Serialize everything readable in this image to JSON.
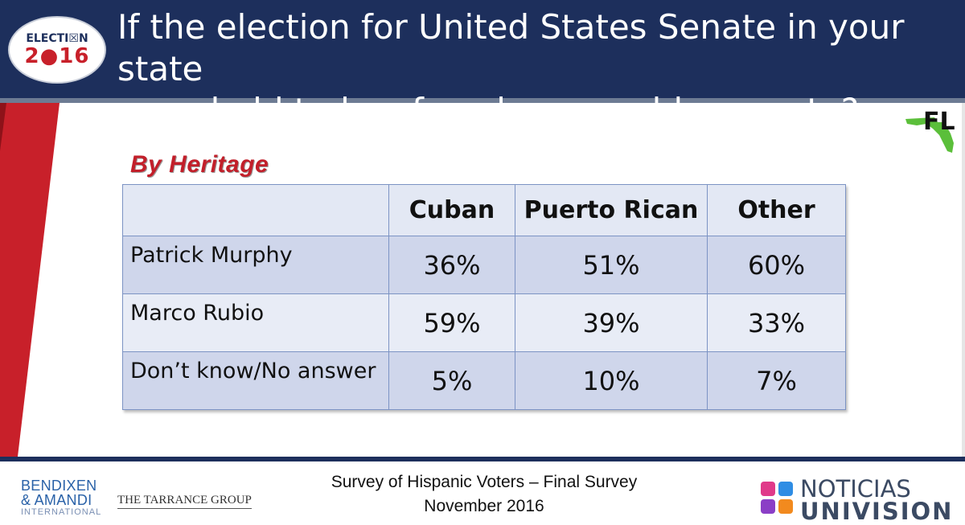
{
  "header": {
    "logo_line1": "ELECTI☒N",
    "logo_line2": "2●16",
    "title_line1": "If the election for United States Senate in your state",
    "title_line2": "were held today, for whom would you vote?"
  },
  "state_label": "FL",
  "section_heading": "By Heritage",
  "table": {
    "columns": [
      "",
      "Cuban",
      "Puerto Rican",
      "Other"
    ],
    "rows": [
      {
        "label": "Patrick Murphy",
        "values": [
          "36%",
          "51%",
          "60%"
        ]
      },
      {
        "label": "Marco Rubio",
        "values": [
          "59%",
          "39%",
          "33%"
        ]
      },
      {
        "label": "Don’t know/No answer",
        "values": [
          "5%",
          "10%",
          "7%"
        ]
      }
    ]
  },
  "footer": {
    "bendixen_line1": "BENDIXEN",
    "bendixen_line2": "& AMANDI",
    "bendixen_line3": "INTERNATIONAL",
    "tarrance": "THE TARRANCE GROUP",
    "survey_line1": "Survey of Hispanic Voters – Final Survey",
    "survey_line2": "November 2016",
    "noticias_line1": "NOTICIAS",
    "noticias_line2": "UNIVISION"
  },
  "colors": {
    "header_navy": "#1d2f5c",
    "accent_red": "#c21f2a",
    "table_border": "#7c93c4"
  }
}
